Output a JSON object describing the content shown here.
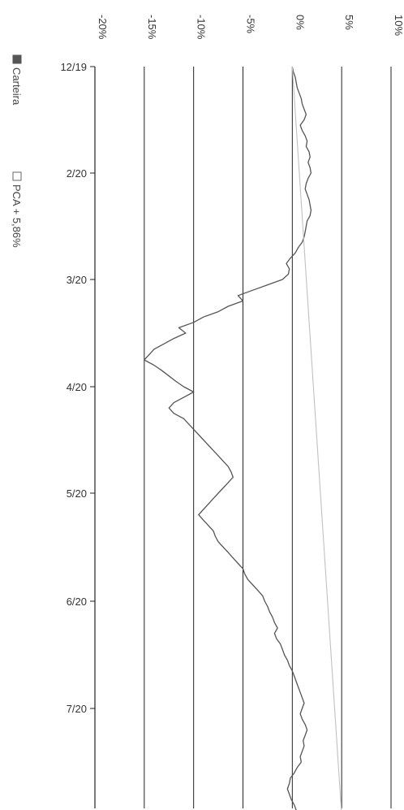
{
  "chart_data": {
    "type": "line",
    "orientation": "rotated-90-clockwise",
    "title": "",
    "xlabel": "",
    "ylabel": "",
    "x_tick_labels": [
      "12/19",
      "2/20",
      "3/20",
      "4/20",
      "5/20",
      "6/20",
      "7/20"
    ],
    "y_ticks": [
      -20,
      -15,
      -10,
      -5,
      0,
      5,
      10
    ],
    "y_tick_labels": [
      "-20%",
      "-15%",
      "-10%",
      "-5%",
      "0%",
      "5%",
      "10%"
    ],
    "ylim": [
      -20,
      10
    ],
    "x_domain": [
      0,
      7.0
    ],
    "grid": "horizontal gridlines at each percentage tick",
    "legend_position": "top-left (rotated)",
    "colors": {
      "carteira": "#555555",
      "pca": "#c0c0c0",
      "grid": "#222222",
      "axis": "#222222"
    },
    "series": [
      {
        "name": "Carteira",
        "x": [
          0,
          0.05,
          0.1,
          0.15,
          0.2,
          0.25,
          0.3,
          0.35,
          0.4,
          0.45,
          0.5,
          0.55,
          0.6,
          0.65,
          0.7,
          0.75,
          0.8,
          0.85,
          0.9,
          0.95,
          1.0,
          1.05,
          1.1,
          1.15,
          1.2,
          1.25,
          1.3,
          1.35,
          1.4,
          1.45,
          1.5,
          1.55,
          1.6,
          1.65,
          1.7,
          1.75,
          1.8,
          1.85,
          1.9,
          1.95,
          2.0,
          2.05,
          2.1,
          2.15,
          2.2,
          2.25,
          2.3,
          2.35,
          2.4,
          2.45,
          2.5,
          2.55,
          2.6,
          2.65,
          2.7,
          2.75,
          2.8,
          2.85,
          2.9,
          2.95,
          3.0,
          3.05,
          3.1,
          3.15,
          3.2,
          3.25,
          3.3,
          3.35,
          3.4,
          3.45,
          3.5,
          3.55,
          3.6,
          3.65,
          3.7,
          3.75,
          3.8,
          3.85,
          3.9,
          3.95,
          4.0,
          4.05,
          4.1,
          4.15,
          4.2,
          4.25,
          4.3,
          4.35,
          4.4,
          4.45,
          4.5,
          4.55,
          4.6,
          4.65,
          4.7,
          4.75,
          4.8,
          4.85,
          4.9,
          4.95,
          5.0,
          5.05,
          5.1,
          5.15,
          5.2,
          5.25,
          5.3,
          5.35,
          5.4,
          5.45,
          5.5,
          5.55,
          5.6,
          5.65,
          5.7,
          5.75,
          5.8,
          5.85,
          5.9,
          5.95,
          6.0,
          6.05,
          6.1,
          6.15,
          6.2,
          6.25,
          6.3,
          6.35,
          6.4,
          6.45,
          6.5,
          6.55,
          6.6,
          6.65,
          6.7,
          6.75,
          6.8,
          6.85,
          6.9,
          6.95,
          7.0
        ],
        "values": [
          0,
          0.1,
          0.3,
          0.4,
          0.5,
          0.7,
          0.9,
          1.0,
          1.2,
          1.4,
          1.2,
          0.8,
          1.0,
          1.3,
          1.5,
          1.4,
          1.7,
          1.8,
          1.6,
          1.8,
          1.9,
          1.6,
          1.4,
          1.3,
          1.5,
          1.7,
          1.8,
          1.9,
          1.8,
          1.5,
          1.4,
          1.3,
          1.2,
          1.0,
          0.6,
          0.3,
          -0.2,
          -0.6,
          -0.3,
          -0.4,
          -1.0,
          -2.5,
          -4.0,
          -5.5,
          -5.0,
          -6.5,
          -7.5,
          -9.0,
          -10.0,
          -11.5,
          -10.8,
          -12.0,
          -13.0,
          -14.0,
          -14.5,
          -15.0,
          -14.0,
          -13.2,
          -12.5,
          -11.8,
          -11.0,
          -10.0,
          -11.0,
          -12.0,
          -12.5,
          -12.0,
          -11.0,
          -10.5,
          -10.0,
          -9.5,
          -9.0,
          -8.5,
          -8.0,
          -7.5,
          -7.0,
          -6.5,
          -6.2,
          -6.0,
          -6.5,
          -7.0,
          -7.5,
          -8.0,
          -8.5,
          -9.0,
          -9.5,
          -9.0,
          -8.5,
          -8.0,
          -7.8,
          -7.5,
          -7.0,
          -6.5,
          -6.0,
          -5.5,
          -5.0,
          -4.8,
          -4.5,
          -4.0,
          -3.5,
          -3.0,
          -2.8,
          -2.5,
          -2.3,
          -2.0,
          -1.8,
          -1.5,
          -1.8,
          -1.6,
          -1.2,
          -1.0,
          -0.8,
          -0.5,
          -0.3,
          0.0,
          0.2,
          0.4,
          0.6,
          0.8,
          1.0,
          1.2,
          1.0,
          0.8,
          1.0,
          1.3,
          1.5,
          1.3,
          1.1,
          1.2,
          1.0,
          0.8,
          0.9,
          0.5,
          0.2,
          -0.2,
          -0.3,
          -0.5,
          -0.3,
          -0.1,
          0.2,
          0.4,
          0.6
        ]
      },
      {
        "name": "PCA + 5,86%",
        "x": [
          0,
          7.0
        ],
        "values": [
          0,
          5.0
        ]
      }
    ]
  }
}
